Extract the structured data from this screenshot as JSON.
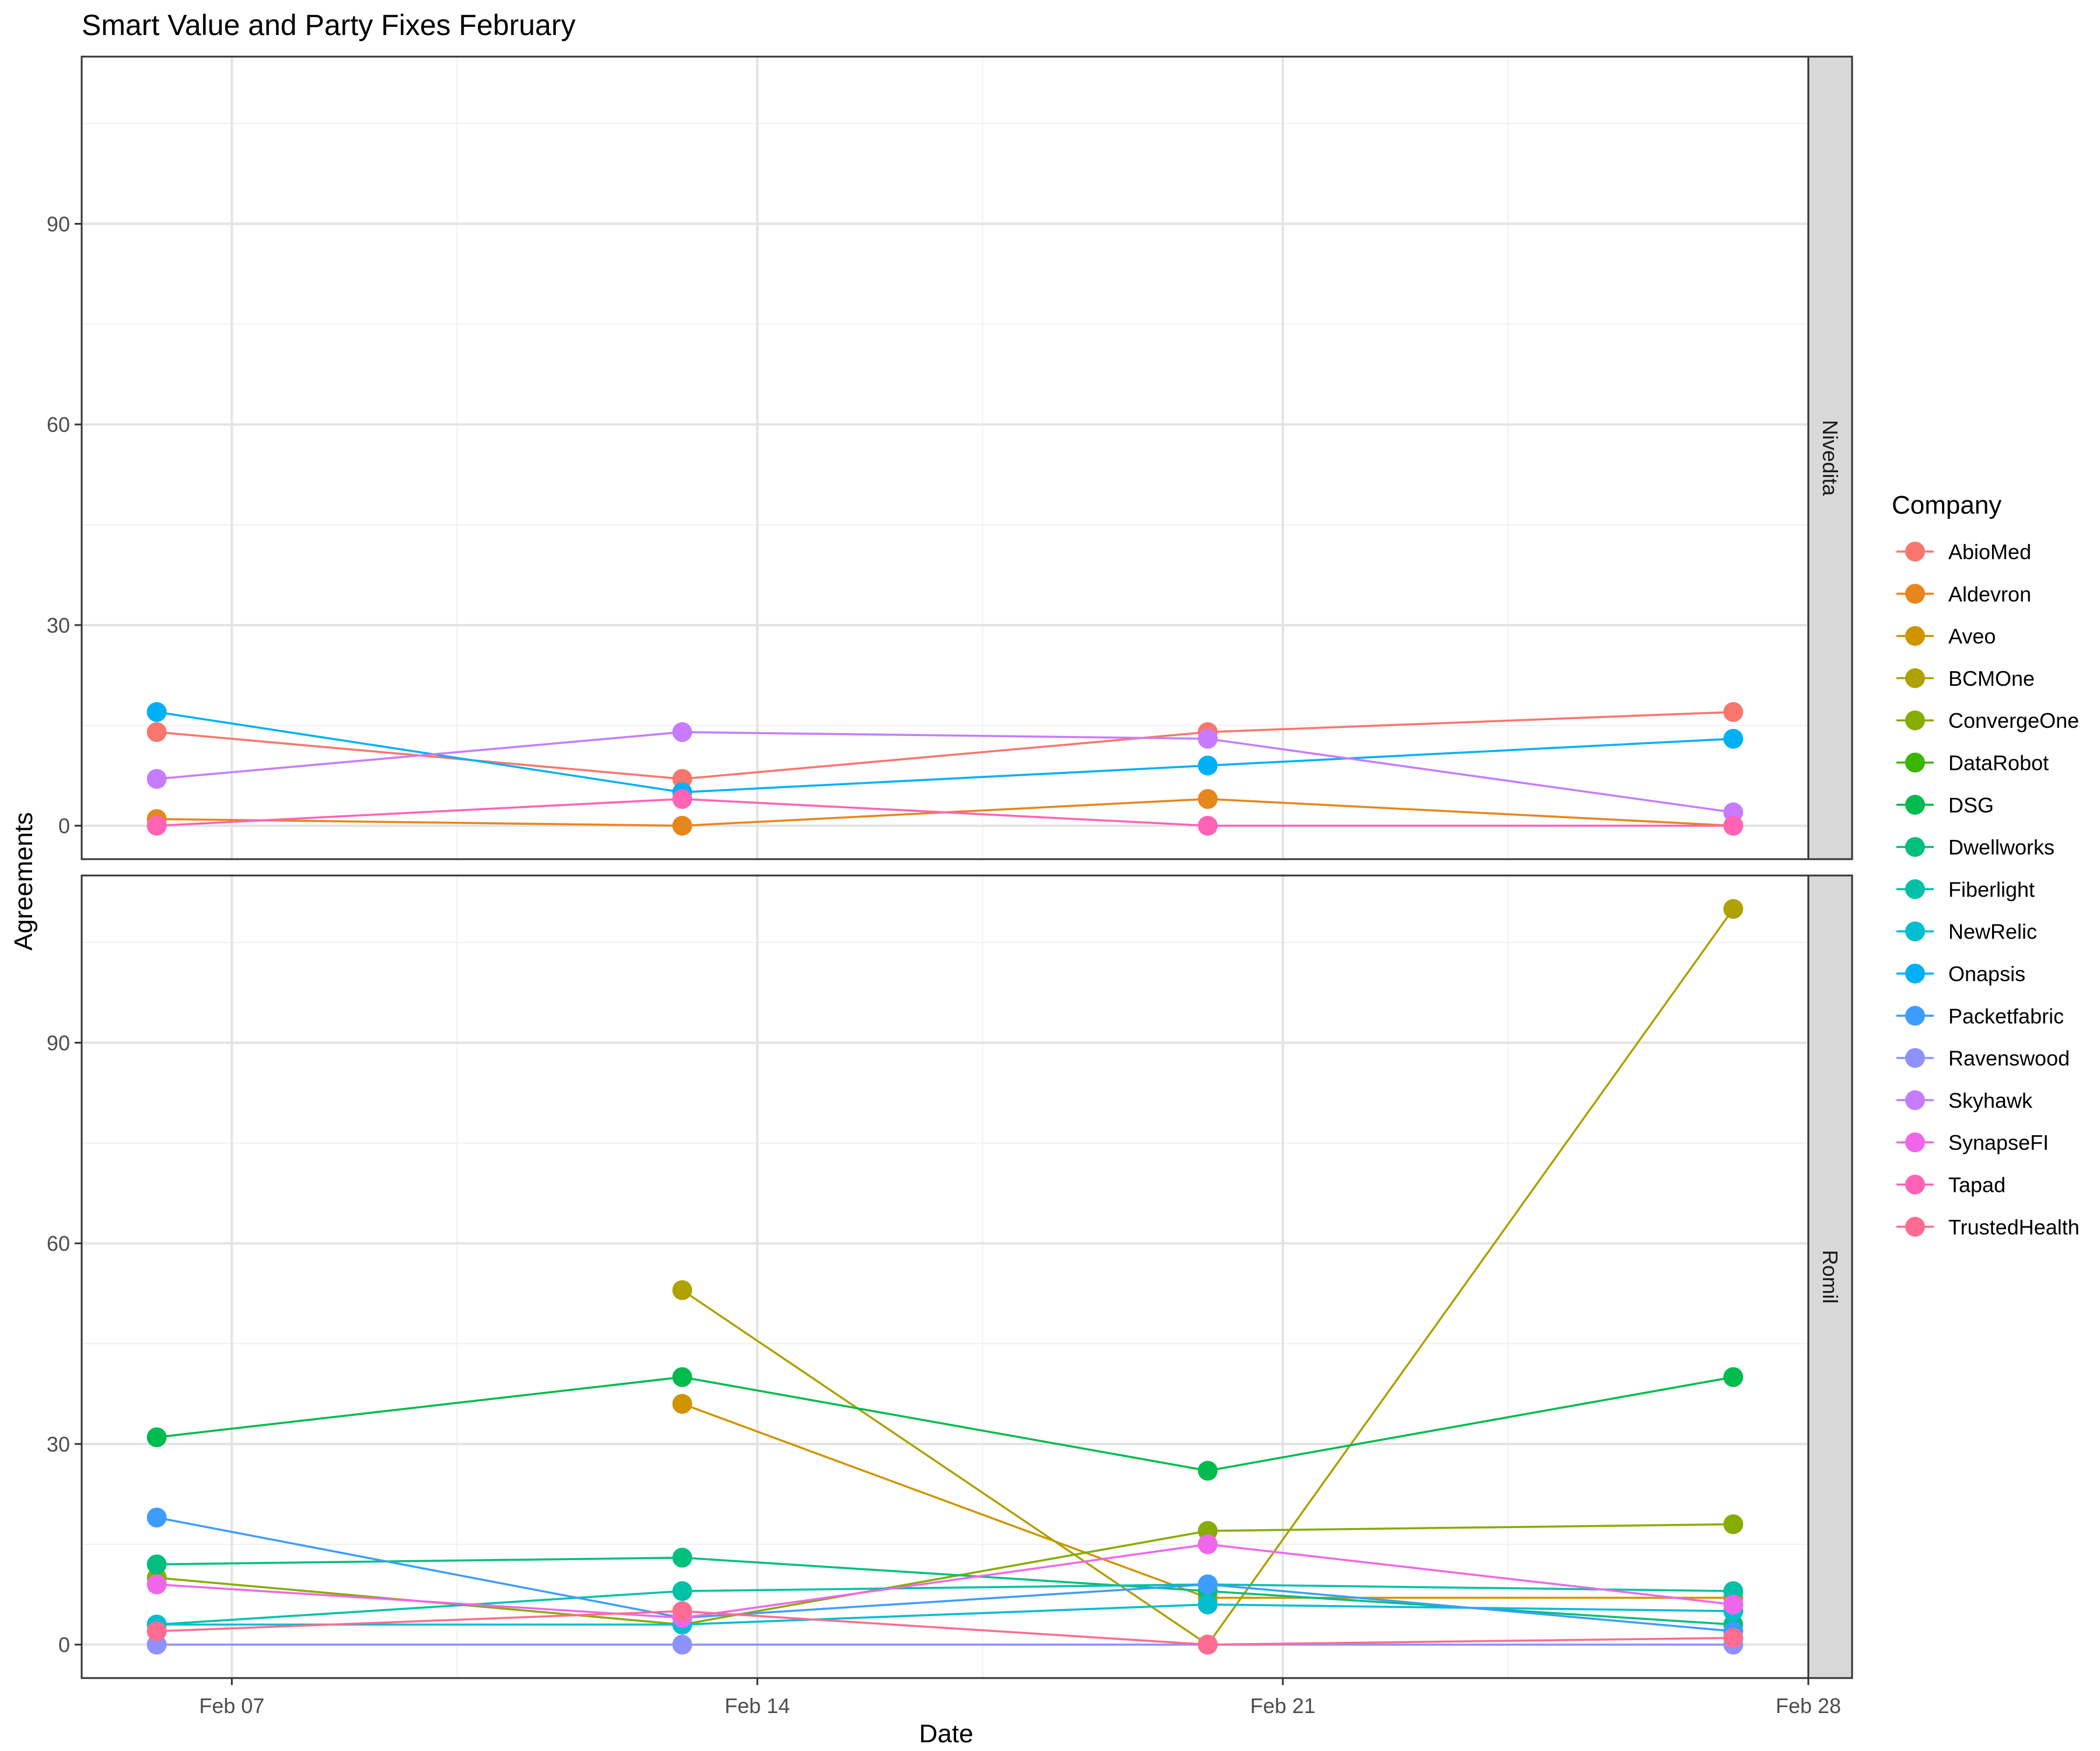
{
  "chart_data": {
    "type": "line",
    "title": "Smart Value and Party Fixes February",
    "xlabel": "Date",
    "ylabel": "Agreements",
    "legend_title": "Company",
    "legend_position": "right",
    "grid": true,
    "facet_by": "panel",
    "x_ticks": [
      "Feb 07",
      "Feb 14",
      "Feb 21",
      "Feb 28"
    ],
    "y_ticks": [
      "0",
      "30",
      "60",
      "90"
    ],
    "x_domain": [
      "2021-02-05",
      "2021-02-28"
    ],
    "ylim": [
      -5,
      115
    ],
    "dates": [
      "2021-02-06",
      "2021-02-13",
      "2021-02-20",
      "2021-02-27"
    ],
    "companies": [
      {
        "name": "AbioMed",
        "color": "#F8766D"
      },
      {
        "name": "Aldevron",
        "color": "#E7861B"
      },
      {
        "name": "Aveo",
        "color": "#D09400"
      },
      {
        "name": "BCMOne",
        "color": "#AFA100"
      },
      {
        "name": "ConvergeOne",
        "color": "#86AC00"
      },
      {
        "name": "DataRobot",
        "color": "#39B600"
      },
      {
        "name": "DSG",
        "color": "#00BB4E"
      },
      {
        "name": "Dwellworks",
        "color": "#00BF7D"
      },
      {
        "name": "Fiberlight",
        "color": "#00C1A7"
      },
      {
        "name": "NewRelic",
        "color": "#00BDD0"
      },
      {
        "name": "Onapsis",
        "color": "#00B0F6"
      },
      {
        "name": "Packetfabric",
        "color": "#3D9DFF"
      },
      {
        "name": "Ravenswood",
        "color": "#8F91FF"
      },
      {
        "name": "Skyhawk",
        "color": "#C77CFF"
      },
      {
        "name": "SynapseFI",
        "color": "#F066EA"
      },
      {
        "name": "Tapad",
        "color": "#FF63B6"
      },
      {
        "name": "TrustedHealth",
        "color": "#FF6C91"
      }
    ],
    "panels": [
      {
        "label": "Nivedita",
        "series": [
          {
            "name": "AbioMed",
            "x": [
              "2021-02-06",
              "2021-02-13",
              "2021-02-20",
              "2021-02-27"
            ],
            "y": [
              14,
              7,
              14,
              17
            ]
          },
          {
            "name": "Aldevron",
            "x": [
              "2021-02-06",
              "2021-02-13",
              "2021-02-20",
              "2021-02-27"
            ],
            "y": [
              1,
              0,
              4,
              0
            ]
          },
          {
            "name": "Onapsis",
            "x": [
              "2021-02-06",
              "2021-02-13",
              "2021-02-20",
              "2021-02-27"
            ],
            "y": [
              17,
              5,
              9,
              13
            ]
          },
          {
            "name": "Skyhawk",
            "x": [
              "2021-02-06",
              "2021-02-13",
              "2021-02-20",
              "2021-02-27"
            ],
            "y": [
              7,
              14,
              13,
              2
            ]
          },
          {
            "name": "Tapad",
            "x": [
              "2021-02-06",
              "2021-02-13",
              "2021-02-20",
              "2021-02-27"
            ],
            "y": [
              0,
              4,
              0,
              0
            ]
          }
        ]
      },
      {
        "label": "Romil",
        "series": [
          {
            "name": "Aveo",
            "x": [
              "2021-02-13",
              "2021-02-20",
              "2021-02-27"
            ],
            "y": [
              36,
              7,
              7
            ]
          },
          {
            "name": "BCMOne",
            "x": [
              "2021-02-13",
              "2021-02-20",
              "2021-02-27"
            ],
            "y": [
              53,
              0,
              110
            ]
          },
          {
            "name": "ConvergeOne",
            "x": [
              "2021-02-06",
              "2021-02-13",
              "2021-02-20",
              "2021-02-27"
            ],
            "y": [
              10,
              3,
              17,
              18
            ]
          },
          {
            "name": "DSG",
            "x": [
              "2021-02-06",
              "2021-02-13",
              "2021-02-20",
              "2021-02-27"
            ],
            "y": [
              31,
              40,
              26,
              40
            ]
          },
          {
            "name": "Dwellworks",
            "x": [
              "2021-02-06",
              "2021-02-13",
              "2021-02-20",
              "2021-02-27"
            ],
            "y": [
              12,
              13,
              8,
              3
            ]
          },
          {
            "name": "Fiberlight",
            "x": [
              "2021-02-06",
              "2021-02-13",
              "2021-02-20",
              "2021-02-27"
            ],
            "y": [
              3,
              8,
              9,
              8
            ]
          },
          {
            "name": "NewRelic",
            "x": [
              "2021-02-06",
              "2021-02-13",
              "2021-02-20",
              "2021-02-27"
            ],
            "y": [
              3,
              3,
              6,
              5
            ]
          },
          {
            "name": "Packetfabric",
            "x": [
              "2021-02-06",
              "2021-02-13",
              "2021-02-20",
              "2021-02-27"
            ],
            "y": [
              19,
              4,
              9,
              2
            ]
          },
          {
            "name": "Ravenswood",
            "x": [
              "2021-02-06",
              "2021-02-13",
              "2021-02-20",
              "2021-02-27"
            ],
            "y": [
              0,
              0,
              0,
              0
            ]
          },
          {
            "name": "SynapseFI",
            "x": [
              "2021-02-06",
              "2021-02-13",
              "2021-02-20",
              "2021-02-27"
            ],
            "y": [
              9,
              4,
              15,
              6
            ]
          },
          {
            "name": "TrustedHealth",
            "x": [
              "2021-02-06",
              "2021-02-13",
              "2021-02-20",
              "2021-02-27"
            ],
            "y": [
              2,
              5,
              0,
              1
            ]
          }
        ]
      }
    ]
  }
}
